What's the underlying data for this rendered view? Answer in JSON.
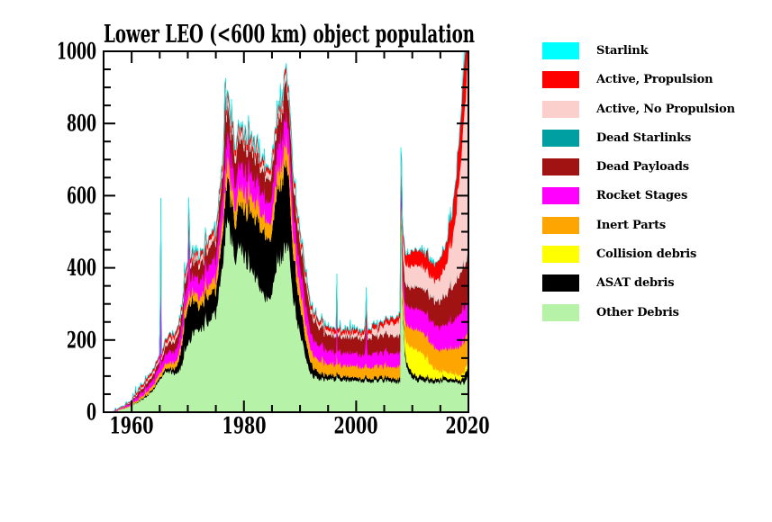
{
  "page": {
    "background": "#FFFFFF"
  },
  "chart_data": {
    "type": "area",
    "stacked": true,
    "title": "Lower LEO (<600 km) object population",
    "xlabel": "",
    "ylabel": "",
    "xlim": [
      1955,
      2020
    ],
    "ylim": [
      0,
      1000
    ],
    "grid": false,
    "legend_position": "right",
    "x_tick_labels": [
      "1960",
      "1980",
      "2000",
      "2020"
    ],
    "y_tick_labels": [
      "0",
      "200",
      "400",
      "600",
      "800",
      "1000"
    ],
    "x_major_ticks": [
      1960,
      1980,
      2000,
      2020
    ],
    "y_major_ticks": [
      0,
      200,
      400,
      600,
      800,
      1000
    ],
    "x_minor_step": 5,
    "y_minor_step": 50,
    "years": [
      1955,
      1956,
      1957,
      1958,
      1959,
      1960,
      1961,
      1962,
      1963,
      1964,
      1965,
      1965.2,
      1965.35,
      1965.5,
      1966,
      1967,
      1968,
      1969,
      1970,
      1970.2,
      1970.35,
      1970.5,
      1971,
      1972,
      1973,
      1974,
      1975,
      1976,
      1976.5,
      1976.65,
      1976.8,
      1977,
      1978,
      1978.5,
      1979,
      1980,
      1981,
      1982,
      1983,
      1984,
      1985,
      1986,
      1987,
      1987.2,
      1987.35,
      1987.5,
      1988,
      1989,
      1990,
      1991,
      1992,
      1993,
      1994,
      1995,
      1996,
      1996.4,
      1996.55,
      1996.7,
      1997,
      1998,
      1999,
      2000,
      2001,
      2001.6,
      2001.8,
      2002,
      2003,
      2004,
      2005,
      2006,
      2007,
      2007.85,
      2008,
      2008.15,
      2008.4,
      2008.7,
      2009,
      2010,
      2011,
      2012,
      2013,
      2014,
      2015,
      2016,
      2017,
      2018,
      2018.5,
      2019,
      2019.5,
      2020
    ],
    "series": [
      {
        "name": "Other Debris",
        "color": "#B6F2A7",
        "values": [
          0,
          0,
          2,
          8,
          12,
          16,
          28,
          36,
          48,
          65,
          90,
          95,
          95,
          98,
          110,
          115,
          100,
          135,
          185,
          188,
          192,
          196,
          225,
          235,
          240,
          255,
          270,
          400,
          470,
          500,
          520,
          540,
          470,
          390,
          470,
          430,
          410,
          380,
          350,
          320,
          330,
          420,
          450,
          470,
          470,
          470,
          450,
          300,
          220,
          150,
          105,
          95,
          92,
          90,
          90,
          90,
          100,
          90,
          90,
          90,
          90,
          88,
          88,
          88,
          92,
          88,
          87,
          87,
          86,
          86,
          85,
          85,
          790,
          380,
          260,
          170,
          120,
          95,
          88,
          86,
          85,
          85,
          85,
          85,
          84,
          82,
          81,
          80,
          85,
          115
        ]
      },
      {
        "name": "ASAT debris",
        "color": "#000000",
        "values": [
          0,
          0,
          0,
          0,
          0,
          1,
          2,
          3,
          4,
          5,
          6,
          6,
          6,
          6,
          9,
          10,
          18,
          55,
          105,
          107,
          109,
          107,
          95,
          62,
          70,
          72,
          65,
          85,
          95,
          100,
          105,
          110,
          105,
          100,
          110,
          130,
          155,
          165,
          160,
          170,
          170,
          200,
          220,
          225,
          230,
          220,
          190,
          110,
          80,
          50,
          30,
          20,
          15,
          12,
          12,
          12,
          13,
          12,
          11,
          11,
          10,
          9,
          9,
          9,
          10,
          9,
          9,
          9,
          10,
          10,
          10,
          12,
          14,
          14,
          14,
          14,
          14,
          14,
          12,
          11,
          10,
          9,
          8,
          8,
          8,
          8,
          9,
          10,
          28,
          14
        ]
      },
      {
        "name": "Collision debris",
        "color": "#FFFF00",
        "values": [
          0,
          0,
          0,
          0,
          0,
          0,
          0,
          0,
          0,
          0,
          0,
          0,
          0,
          0,
          0,
          0,
          0,
          0,
          0,
          0,
          0,
          0,
          0,
          0,
          0,
          0,
          0,
          0,
          0,
          0,
          0,
          0,
          0,
          0,
          0,
          0,
          0,
          0,
          0,
          0,
          0,
          0,
          0,
          0,
          0,
          0,
          0,
          0,
          0,
          0,
          0,
          0,
          0,
          0,
          0,
          0,
          0,
          0,
          0,
          0,
          0,
          0,
          0,
          0,
          0,
          0,
          0,
          0,
          0,
          0,
          0,
          0,
          4,
          10,
          22,
          40,
          55,
          72,
          70,
          62,
          45,
          28,
          20,
          17,
          15,
          14,
          14,
          13,
          13,
          12
        ]
      },
      {
        "name": "Inert Parts",
        "color": "#FFA502",
        "values": [
          0,
          0,
          0,
          1,
          2,
          3,
          5,
          7,
          8,
          10,
          12,
          12,
          12,
          12,
          14,
          15,
          17,
          19,
          22,
          22,
          23,
          23,
          24,
          25,
          27,
          29,
          32,
          38,
          40,
          42,
          43,
          44,
          44,
          43,
          44,
          44,
          45,
          45,
          44,
          43,
          44,
          47,
          52,
          53,
          54,
          54,
          54,
          50,
          46,
          41,
          36,
          33,
          31,
          30,
          30,
          30,
          32,
          30,
          30,
          30,
          30,
          30,
          30,
          30,
          31,
          30,
          30,
          30,
          30,
          30,
          31,
          32,
          34,
          36,
          40,
          45,
          50,
          55,
          57,
          58,
          58,
          59,
          60,
          63,
          68,
          76,
          80,
          86,
          84,
          82
        ]
      },
      {
        "name": "Rocket Stages",
        "color": "#FF00FF",
        "values": [
          0,
          0,
          1,
          2,
          3,
          5,
          8,
          11,
          14,
          17,
          20,
          430,
          20,
          20,
          26,
          28,
          32,
          36,
          42,
          260,
          44,
          44,
          44,
          45,
          48,
          52,
          56,
          62,
          64,
          66,
          67,
          68,
          66,
          64,
          64,
          60,
          60,
          59,
          58,
          58,
          58,
          62,
          66,
          67,
          68,
          68,
          68,
          63,
          58,
          53,
          48,
          43,
          39,
          37,
          35,
          35,
          140,
          35,
          35,
          35,
          35,
          35,
          35,
          35,
          130,
          35,
          37,
          37,
          37,
          37,
          38,
          39,
          40,
          42,
          45,
          50,
          53,
          56,
          58,
          59,
          61,
          63,
          65,
          69,
          74,
          83,
          88,
          93,
          90,
          84
        ]
      },
      {
        "name": "Dead Payloads",
        "color": "#A11212",
        "values": [
          0,
          0,
          0,
          1,
          2,
          4,
          7,
          9,
          11,
          13,
          16,
          18,
          16,
          16,
          22,
          25,
          28,
          32,
          38,
          40,
          38,
          38,
          40,
          42,
          46,
          50,
          54,
          62,
          66,
          260,
          70,
          75,
          73,
          70,
          72,
          68,
          67,
          66,
          65,
          64,
          64,
          70,
          76,
          78,
          140,
          80,
          80,
          74,
          68,
          62,
          56,
          51,
          48,
          46,
          44,
          44,
          46,
          44,
          44,
          44,
          44,
          44,
          45,
          45,
          48,
          45,
          46,
          47,
          48,
          48,
          49,
          50,
          51,
          52,
          53,
          54,
          56,
          58,
          60,
          62,
          64,
          68,
          74,
          83,
          94,
          104,
          110,
          114,
          118,
          128
        ]
      },
      {
        "name": "Dead Starlinks",
        "color": "#00A0A2",
        "values": [
          0,
          0,
          0,
          0,
          0,
          0,
          0,
          0,
          0,
          0,
          0,
          0,
          0,
          0,
          0,
          0,
          0,
          0,
          0,
          0,
          0,
          0,
          0,
          0,
          0,
          0,
          0,
          0,
          0,
          0,
          0,
          0,
          0,
          0,
          0,
          0,
          0,
          0,
          0,
          0,
          0,
          0,
          0,
          0,
          0,
          0,
          0,
          0,
          0,
          0,
          0,
          0,
          0,
          0,
          0,
          0,
          0,
          0,
          0,
          0,
          0,
          0,
          0,
          0,
          0,
          0,
          0,
          0,
          0,
          0,
          0,
          0,
          0,
          0,
          0,
          0,
          0,
          0,
          0,
          0,
          0,
          0,
          0,
          0,
          0,
          0,
          0,
          1,
          2,
          3
        ]
      },
      {
        "name": "Active, No Propulsion",
        "color": "#FBCFCB",
        "values": [
          0,
          0,
          0,
          1,
          1,
          2,
          3,
          5,
          6,
          7,
          8,
          9,
          8,
          8,
          10,
          11,
          11,
          12,
          14,
          15,
          14,
          14,
          14,
          14,
          15,
          15,
          16,
          18,
          19,
          20,
          20,
          21,
          20,
          20,
          20,
          18,
          18,
          17,
          17,
          17,
          17,
          19,
          21,
          21,
          22,
          21,
          21,
          19,
          17,
          15,
          13,
          11,
          10,
          10,
          10,
          10,
          11,
          10,
          10,
          10,
          11,
          11,
          12,
          12,
          13,
          14,
          16,
          20,
          26,
          32,
          38,
          42,
          44,
          46,
          48,
          52,
          56,
          60,
          62,
          60,
          57,
          56,
          62,
          80,
          120,
          220,
          280,
          380,
          470,
          555
        ]
      },
      {
        "name": "Active, Propulsion",
        "color": "#FF0000",
        "values": [
          0,
          0,
          1,
          2,
          2,
          3,
          5,
          7,
          7,
          8,
          9,
          10,
          9,
          9,
          11,
          11,
          11,
          12,
          13,
          13,
          13,
          13,
          13,
          13,
          13,
          14,
          14,
          15,
          16,
          16,
          16,
          17,
          17,
          16,
          16,
          15,
          15,
          15,
          15,
          14,
          14,
          15,
          17,
          17,
          17,
          17,
          17,
          16,
          15,
          13,
          12,
          11,
          10,
          10,
          10,
          10,
          12,
          10,
          11,
          11,
          11,
          11,
          11,
          11,
          12,
          11,
          12,
          12,
          13,
          14,
          15,
          16,
          18,
          20,
          24,
          28,
          32,
          40,
          44,
          45,
          44,
          45,
          50,
          60,
          80,
          108,
          120,
          138,
          148,
          155
        ]
      },
      {
        "name": "Starlink",
        "color": "#00FFFF",
        "values": [
          0,
          0,
          0,
          0,
          0,
          0,
          0,
          0,
          0,
          0,
          0,
          0,
          0,
          0,
          0,
          0,
          0,
          0,
          0,
          0,
          0,
          0,
          0,
          0,
          0,
          0,
          0,
          0,
          0,
          0,
          0,
          0,
          0,
          0,
          0,
          0,
          0,
          0,
          0,
          0,
          0,
          0,
          0,
          0,
          0,
          0,
          0,
          0,
          0,
          0,
          0,
          0,
          0,
          0,
          0,
          0,
          0,
          0,
          0,
          0,
          0,
          0,
          0,
          0,
          0,
          0,
          0,
          0,
          0,
          0,
          0,
          0,
          0,
          0,
          0,
          0,
          0,
          0,
          0,
          0,
          0,
          0,
          0,
          0,
          0,
          0,
          2,
          22,
          32,
          42
        ]
      }
    ]
  },
  "legend": {
    "items": [
      {
        "label": "Starlink",
        "color": "#00FFFF"
      },
      {
        "label": "Active, Propulsion",
        "color": "#FF0000"
      },
      {
        "label": "Active, No Propulsion",
        "color": "#FBCFCB"
      },
      {
        "label": "Dead Starlinks",
        "color": "#00A0A2"
      },
      {
        "label": "Dead Payloads",
        "color": "#A11212"
      },
      {
        "label": "Rocket Stages",
        "color": "#FF00FF"
      },
      {
        "label": "Inert Parts",
        "color": "#FFA502"
      },
      {
        "label": "Collision debris",
        "color": "#FFFF00"
      },
      {
        "label": "ASAT debris",
        "color": "#000000"
      },
      {
        "label": "Other Debris",
        "color": "#B6F2A7"
      }
    ]
  }
}
